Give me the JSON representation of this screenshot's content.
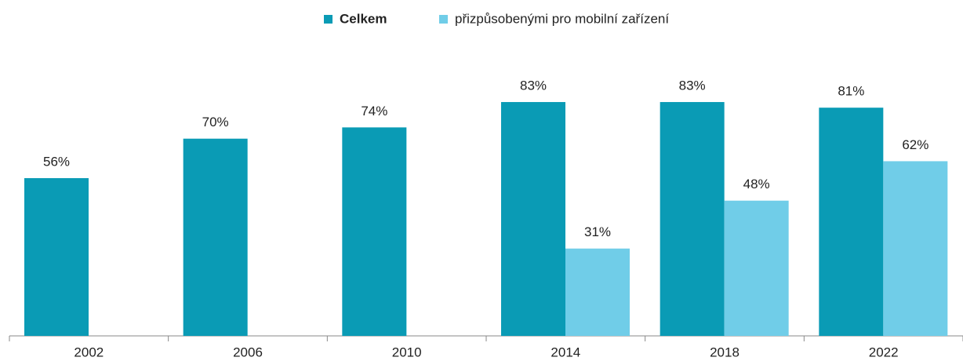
{
  "chart_data": {
    "type": "bar",
    "categories": [
      "2002",
      "2006",
      "2010",
      "2014",
      "2018",
      "2022"
    ],
    "series": [
      {
        "name": "Celkem",
        "color": "#0a9bb5",
        "values": [
          56,
          70,
          74,
          83,
          83,
          81
        ],
        "value_labels": [
          "56%",
          "70%",
          "74%",
          "83%",
          "83%",
          "81%"
        ]
      },
      {
        "name": "přizpůsobenými pro mobilní zařízení",
        "color": "#70cde8",
        "values": [
          null,
          null,
          null,
          31,
          48,
          62
        ],
        "value_labels": [
          null,
          null,
          null,
          "31%",
          "48%",
          "62%"
        ]
      }
    ],
    "ylim": [
      0,
      100
    ],
    "legend": "top"
  }
}
